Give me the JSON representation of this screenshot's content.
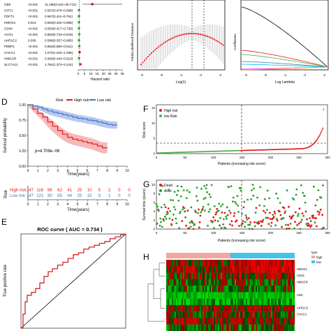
{
  "colors": {
    "high": "#e41a1c",
    "low": "#377eb8",
    "low_green": "#4daf4a",
    "dead": "#e41a1c",
    "alive": "#2ca02c",
    "roc": "#d62728"
  },
  "panelA": {
    "genes": [
      "CBS",
      "GOT1",
      "FDFT1",
      "HMOX1",
      "CD44",
      "ACO1",
      "AKR1C2",
      "PEBP1",
      "CHAC1",
      "HMGCR",
      "SLC7A11"
    ],
    "pvalues": [
      "<0.001",
      "<0.001",
      "<0.001",
      "0.014",
      "<0.001",
      "<0.001",
      "0.036",
      "<0.001",
      "<0.001",
      "<0.001",
      "<0.001"
    ],
    "hr_text": [
      "11.189(3.410~36.712)",
      "0.567(0.076~0.899)",
      "0.567(0.411~0.791)",
      "0.553(0.332~0.888)",
      "0.554(0.417~0.736)",
      "0.853(0.733~0.943)",
      "0.588(0.357~0.965)",
      "0.853(0.880~0.911)",
      "1.070(1.034~1.096)",
      "0.600(0.442~0.813)",
      "1.754(1.373~2.241)"
    ],
    "hr_values": [
      11.189,
      0.567,
      0.567,
      0.553,
      0.554,
      0.853,
      0.588,
      0.853,
      1.07,
      0.6,
      1.754
    ],
    "axis_ticks": [
      "0",
      "5",
      "10",
      "15",
      "20",
      "25",
      "30",
      "35"
    ],
    "axis_max": 35,
    "xlabel": "Hazard ratio"
  },
  "panelB": {
    "ylabel": "Partial Likelihood Deviance",
    "xlabel": "Log(λ)",
    "ticks": [
      "-6",
      "-5",
      "-4",
      "-3",
      "-2"
    ]
  },
  "panelC": {
    "ylabel": "Coefficients",
    "xlabel": "Log Lambda",
    "ticks": [
      "-6",
      "-5",
      "-4",
      "-3",
      "-2"
    ]
  },
  "panelD": {
    "letter": "D",
    "legend_title": "Risk",
    "legend_high": "High risk",
    "legend_low": "Low risk",
    "ylabel": "Survival probability",
    "xlabel": "Time(years)",
    "pvalue": "p=4.709e−06",
    "yticks": [
      "0.00",
      "0.25",
      "0.50",
      "0.75",
      "1.00"
    ],
    "xticks": [
      "0",
      "1",
      "2",
      "3",
      "4",
      "5",
      "6",
      "7",
      "8",
      "9",
      "10"
    ],
    "chart_data": {
      "type": "line",
      "x_unit": "years",
      "series": [
        {
          "name": "High risk",
          "x": [
            0,
            0.5,
            1,
            1.5,
            2,
            2.5,
            3,
            3.5,
            4,
            4.5,
            5,
            5.5,
            6,
            6.5,
            7,
            7.5,
            8
          ],
          "values": [
            1.0,
            0.93,
            0.86,
            0.8,
            0.72,
            0.65,
            0.58,
            0.52,
            0.47,
            0.44,
            0.42,
            0.4,
            0.38,
            0.36,
            0.33,
            0.3,
            0.3
          ]
        },
        {
          "name": "Low risk",
          "x": [
            0,
            0.5,
            1,
            1.5,
            2,
            2.5,
            3,
            3.5,
            4,
            4.5,
            5,
            5.5,
            6,
            6.5,
            7,
            7.5,
            8,
            8.5,
            9
          ],
          "values": [
            1.0,
            0.98,
            0.96,
            0.93,
            0.9,
            0.88,
            0.86,
            0.84,
            0.82,
            0.8,
            0.78,
            0.77,
            0.75,
            0.74,
            0.72,
            0.7,
            0.68,
            0.67,
            0.67
          ]
        }
      ]
    }
  },
  "risk_table": {
    "label": "Risk",
    "high_label": "High risk",
    "low_label": "Low risk",
    "high": [
      "147",
      "116",
      "88",
      "62",
      "41",
      "25",
      "10",
      "5",
      "2",
      "0",
      "0"
    ],
    "low": [
      "147",
      "121",
      "90",
      "65",
      "44",
      "25",
      "15",
      "8",
      "1",
      "0",
      "0"
    ],
    "xlabel": "Time(years)"
  },
  "panelE": {
    "letter": "E",
    "title": "ROC curve ( AUC =  0.734 )",
    "ylabel": "True positive rate",
    "chart_data": {
      "type": "line",
      "fpr": [
        0,
        0.02,
        0.04,
        0.06,
        0.1,
        0.14,
        0.18,
        0.22,
        0.26,
        0.3,
        0.35,
        0.4,
        0.45,
        0.5,
        0.55,
        0.6,
        0.65,
        0.7,
        0.75,
        0.8,
        0.85,
        0.9,
        0.95,
        1.0
      ],
      "tpr": [
        0,
        0.15,
        0.28,
        0.35,
        0.38,
        0.42,
        0.48,
        0.55,
        0.6,
        0.63,
        0.67,
        0.7,
        0.74,
        0.78,
        0.8,
        0.84,
        0.86,
        0.88,
        0.9,
        0.92,
        0.95,
        0.97,
        0.99,
        1.0
      ]
    }
  },
  "panelF": {
    "letter": "F",
    "legend_high": "High risk",
    "legend_low": "low Risk",
    "ylabel": "Risk score",
    "xlabel": "Patients (increasing risk score)",
    "yticks": [
      "0",
      "5",
      "10",
      "15"
    ],
    "xticks": [
      "0",
      "50",
      "100",
      "150",
      "200",
      "250",
      "300"
    ]
  },
  "panelG": {
    "letter": "G",
    "legend_dead": "Dead",
    "legend_alive": "Alive",
    "ylabel": "Survival time (years)",
    "xlabel": "Patients (increasing risk score)",
    "yticks": [
      "0",
      "2",
      "4",
      "6",
      "8",
      "10"
    ],
    "xticks": [
      "0",
      "50",
      "100",
      "150",
      "200",
      "250",
      "300"
    ]
  },
  "panelH": {
    "letter": "H",
    "legend_title": "type",
    "legend_high": "high",
    "legend_low": "low",
    "genes": [
      "HMOX1",
      "CD44",
      "HMGCR",
      "CBS",
      "AKR1C2",
      "CHAC1"
    ]
  }
}
